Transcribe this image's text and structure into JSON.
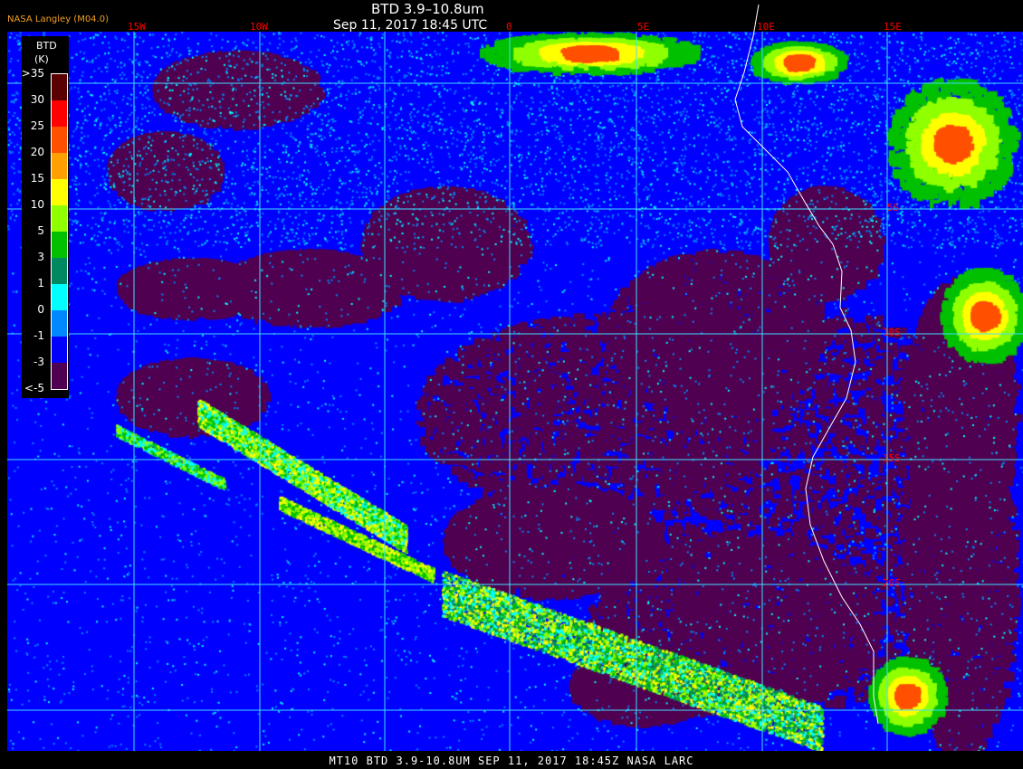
{
  "header": {
    "title": "BTD 3.9–10.8um",
    "datetime": "Sep 11, 2017 18:45 UTC",
    "brand": "NASA Langley (M04.0)"
  },
  "longitude_labels": [
    "15W",
    "10W",
    "0",
    "5E",
    "10E",
    "15E"
  ],
  "latitude_labels": [
    "5S",
    "10S",
    "15S",
    "20S"
  ],
  "legend": {
    "title": "BTD",
    "unit": "(K)",
    "labels": [
      ">35",
      "30",
      "25",
      "20",
      "15",
      "10",
      "5",
      "3",
      "1",
      "0",
      "-1",
      "-3",
      "<-5"
    ],
    "colors": [
      "#5a0000",
      "#ff0000",
      "#ff5000",
      "#ffa000",
      "#ffff00",
      "#90ff00",
      "#00c000",
      "#008860",
      "#00ffff",
      "#0088ff",
      "#0000ff",
      "#500050"
    ]
  },
  "caption": "MT10  BTD 3.9-10.8UM   SEP 11, 2017 18:45Z   NASA LARC",
  "colors": {
    "grid": "#40e0ff",
    "coastline": "#ffffff",
    "label_red": "#ff0000",
    "brand": "#f0a020"
  }
}
